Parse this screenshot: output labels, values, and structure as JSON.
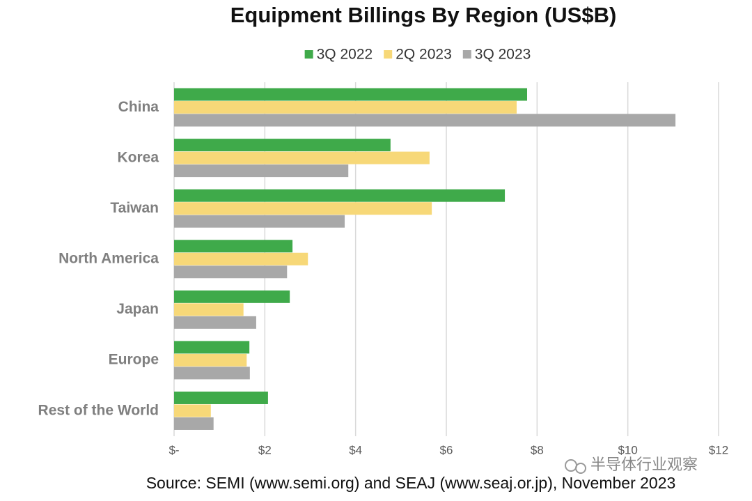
{
  "chart_data": {
    "type": "hbar",
    "title": "Equipment Billings By Region (US$B)",
    "categories": [
      "China",
      "Korea",
      "Taiwan",
      "North America",
      "Japan",
      "Europe",
      "Rest of the World"
    ],
    "series": [
      {
        "name": "3Q 2022",
        "color": "#3faa4a",
        "values": [
          7.78,
          4.77,
          7.29,
          2.61,
          2.55,
          1.66,
          2.07
        ]
      },
      {
        "name": "2Q 2023",
        "color": "#f7d878",
        "values": [
          7.55,
          5.63,
          5.68,
          2.95,
          1.53,
          1.6,
          0.81
        ]
      },
      {
        "name": "3Q 2023",
        "color": "#a8a8a8",
        "values": [
          11.05,
          3.84,
          3.76,
          2.49,
          1.81,
          1.67,
          0.87
        ]
      }
    ],
    "xlim": [
      0,
      12
    ],
    "xticks": [
      {
        "value": 0,
        "label": "$-"
      },
      {
        "value": 2,
        "label": "$2"
      },
      {
        "value": 4,
        "label": "$4"
      },
      {
        "value": 6,
        "label": "$6"
      },
      {
        "value": 8,
        "label": "$8"
      },
      {
        "value": 10,
        "label": "$10"
      },
      {
        "value": 12,
        "label": "$12"
      }
    ],
    "grid": true,
    "legend": "top",
    "source": "Source: SEMI (www.semi.org) and SEAJ (www.seaj.or.jp), November 2023",
    "watermark": "半导体行业观察"
  }
}
